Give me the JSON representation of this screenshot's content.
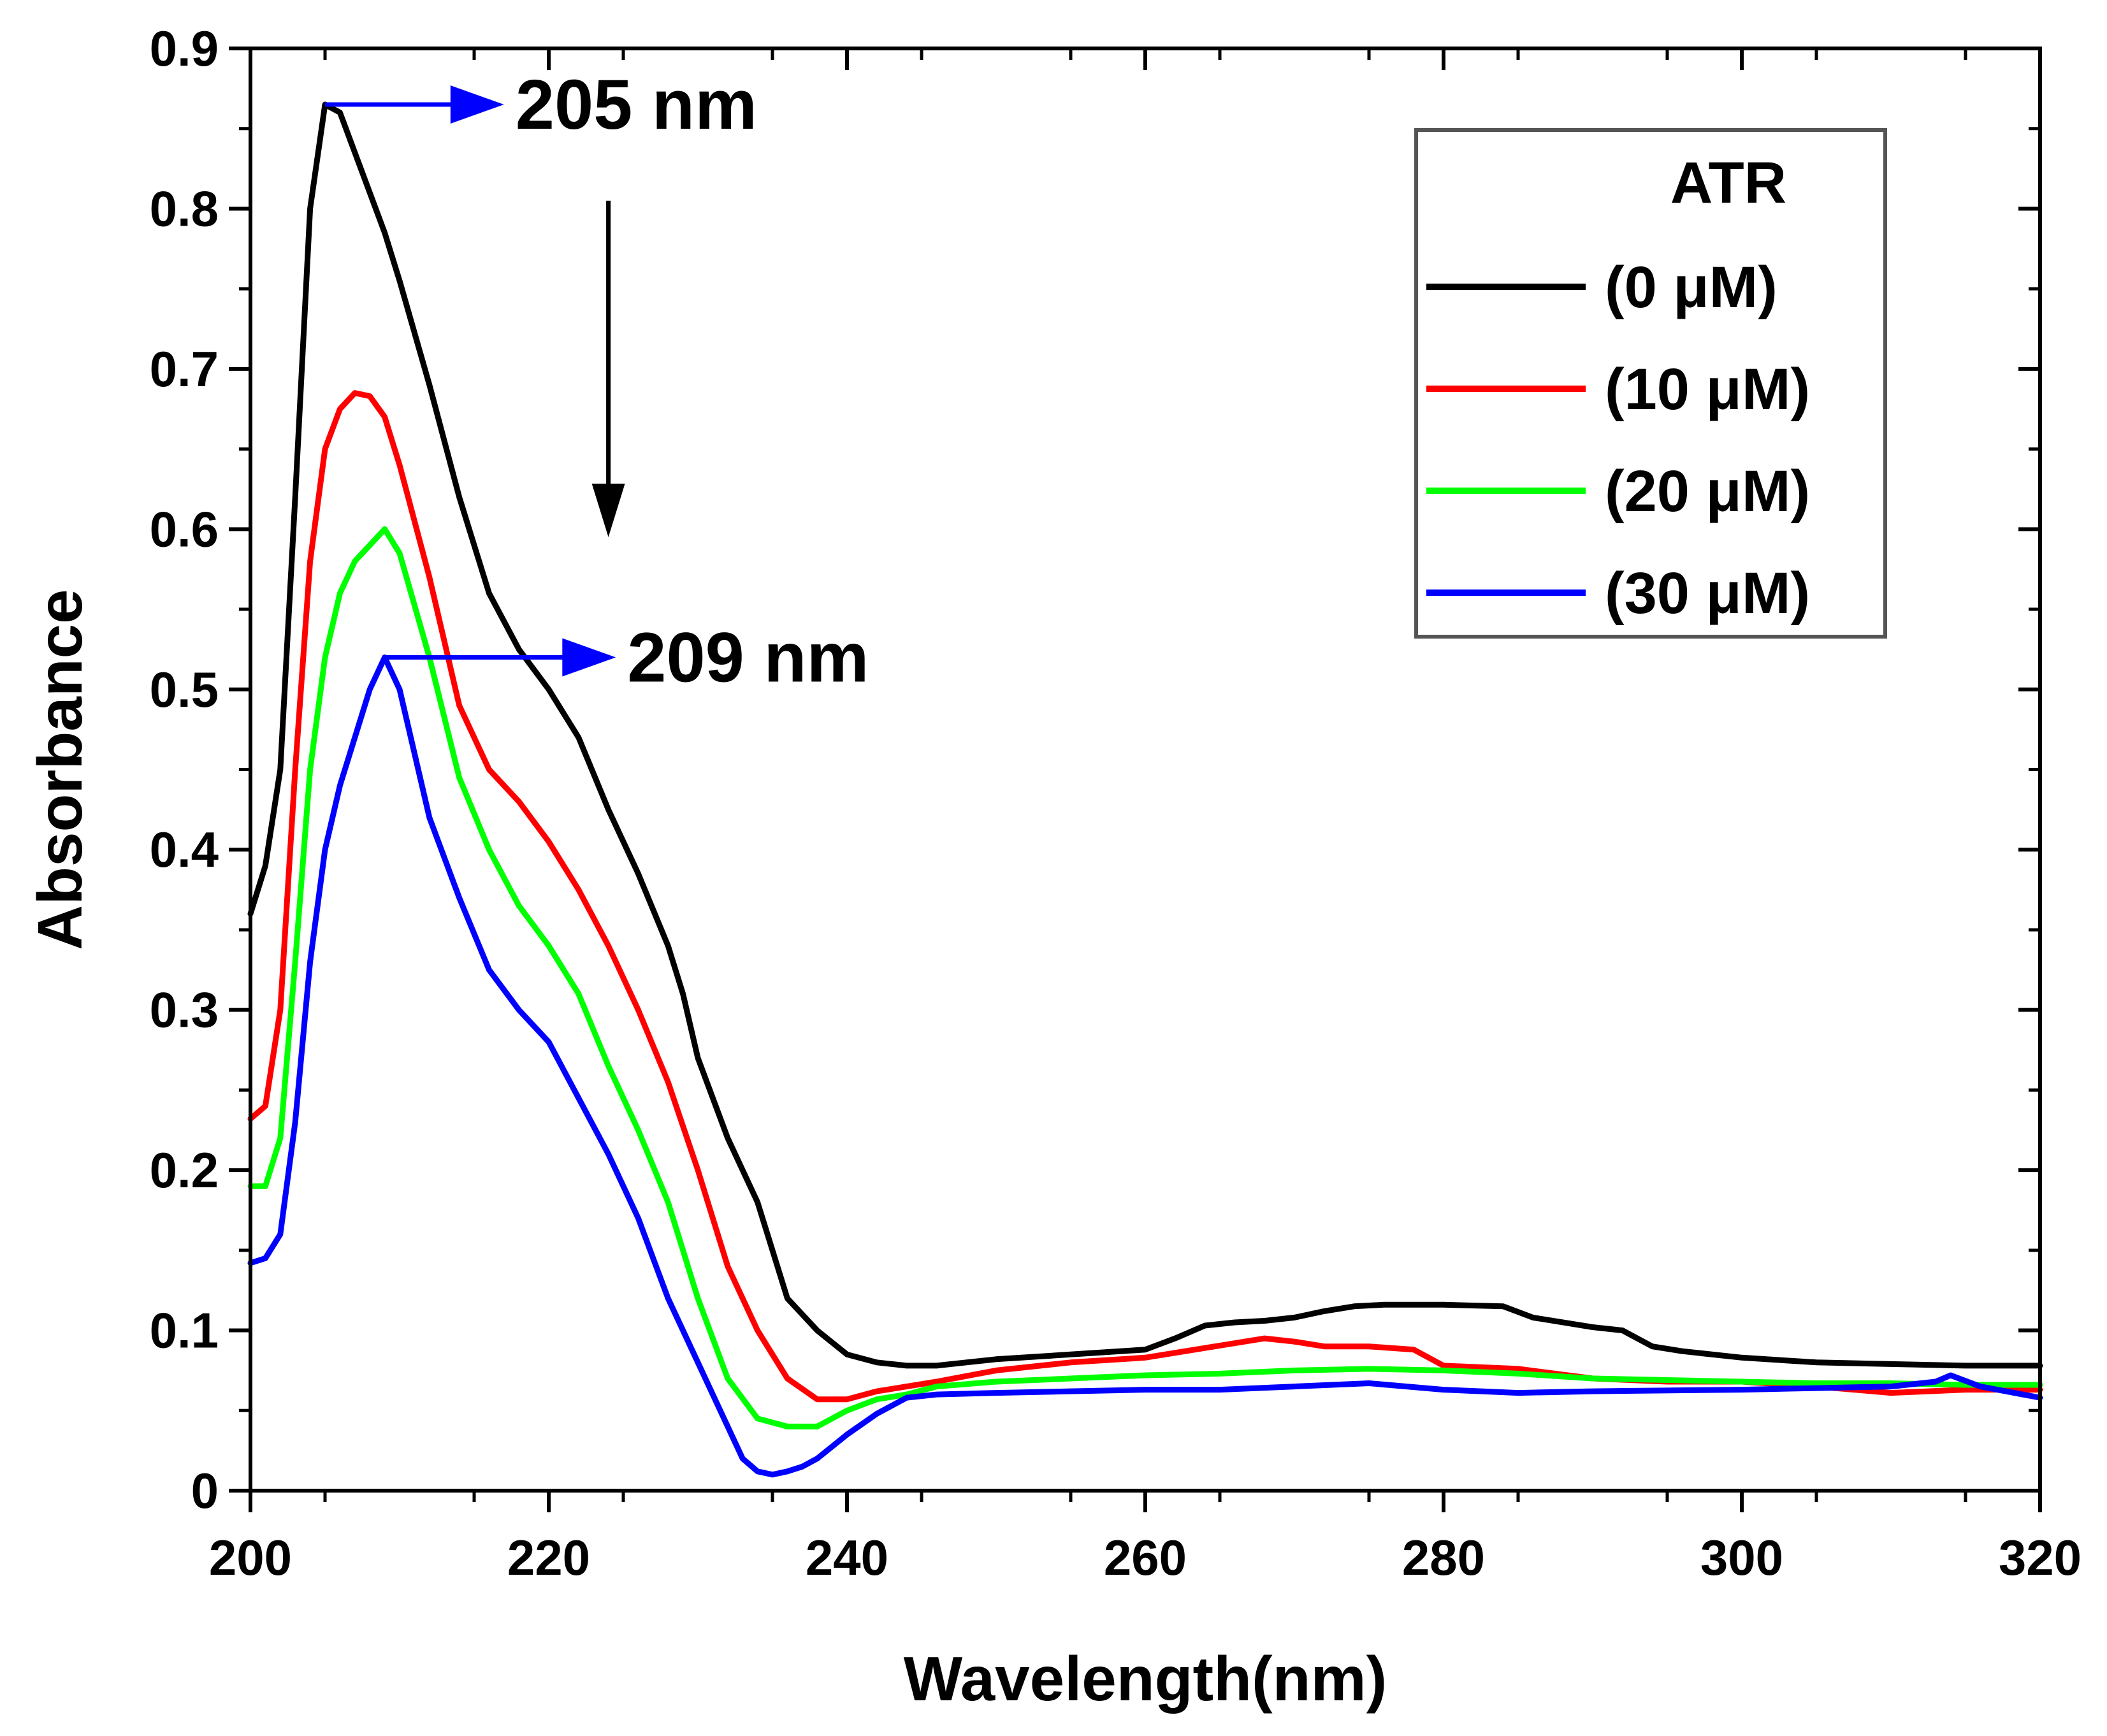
{
  "chart_data": {
    "type": "line",
    "title": "",
    "xlabel": "Wavelength(nm)",
    "ylabel": "Absorbance",
    "xlim": [
      200,
      320
    ],
    "ylim": [
      0,
      0.9
    ],
    "xticks": [
      200,
      220,
      240,
      260,
      280,
      300,
      320
    ],
    "yticks": [
      0,
      0.1,
      0.2,
      0.3,
      0.4,
      0.5,
      0.6,
      0.7,
      0.8,
      0.9
    ],
    "xtick_labels": [
      "200",
      "220",
      "240",
      "260",
      "280",
      "300",
      "320"
    ],
    "ytick_labels": [
      "0",
      "0.1",
      "0.2",
      "0.3",
      "0.4",
      "0.5",
      "0.6",
      "0.7",
      "0.8",
      "0.9"
    ],
    "grid": false,
    "legend": {
      "title": "ATR",
      "position": "top-right"
    },
    "series": [
      {
        "name": "(0 μM)",
        "color": "#000000",
        "x": [
          200,
          201,
          202,
          203,
          204,
          205,
          206,
          207,
          208,
          209,
          210,
          212,
          214,
          216,
          218,
          220,
          222,
          224,
          226,
          228,
          229,
          230,
          232,
          234,
          235,
          236,
          237,
          238,
          240,
          242,
          244,
          246,
          250,
          255,
          260,
          262,
          264,
          266,
          268,
          270,
          272,
          274,
          276,
          280,
          284,
          286,
          290,
          292,
          294,
          296,
          300,
          305,
          310,
          315,
          320
        ],
        "y": [
          0.36,
          0.39,
          0.45,
          0.62,
          0.8,
          0.865,
          0.86,
          0.835,
          0.81,
          0.785,
          0.755,
          0.69,
          0.62,
          0.56,
          0.525,
          0.5,
          0.47,
          0.425,
          0.385,
          0.34,
          0.31,
          0.27,
          0.22,
          0.18,
          0.15,
          0.12,
          0.11,
          0.1,
          0.085,
          0.08,
          0.078,
          0.078,
          0.082,
          0.085,
          0.088,
          0.095,
          0.103,
          0.105,
          0.106,
          0.108,
          0.112,
          0.115,
          0.116,
          0.116,
          0.115,
          0.108,
          0.102,
          0.1,
          0.09,
          0.087,
          0.083,
          0.08,
          0.079,
          0.078,
          0.078
        ]
      },
      {
        "name": "(10 μM)",
        "color": "#ff0000",
        "x": [
          200,
          201,
          202,
          203,
          204,
          205,
          206,
          207,
          208,
          209,
          210,
          212,
          214,
          216,
          218,
          220,
          222,
          224,
          226,
          228,
          230,
          232,
          234,
          236,
          238,
          240,
          242,
          244,
          246,
          250,
          255,
          260,
          264,
          268,
          270,
          272,
          275,
          278,
          280,
          285,
          290,
          295,
          300,
          305,
          310,
          315,
          320
        ],
        "y": [
          0.232,
          0.24,
          0.3,
          0.45,
          0.58,
          0.65,
          0.675,
          0.685,
          0.683,
          0.67,
          0.64,
          0.57,
          0.49,
          0.45,
          0.43,
          0.405,
          0.375,
          0.34,
          0.3,
          0.255,
          0.2,
          0.14,
          0.1,
          0.07,
          0.057,
          0.057,
          0.062,
          0.065,
          0.068,
          0.075,
          0.08,
          0.083,
          0.089,
          0.095,
          0.093,
          0.09,
          0.09,
          0.088,
          0.078,
          0.076,
          0.07,
          0.068,
          0.068,
          0.065,
          0.061,
          0.063,
          0.063
        ]
      },
      {
        "name": "(20 μM)",
        "color": "#00ff00",
        "x": [
          200,
          201,
          202,
          203,
          204,
          205,
          206,
          207,
          208,
          209,
          210,
          212,
          214,
          216,
          218,
          220,
          222,
          224,
          226,
          228,
          230,
          232,
          234,
          236,
          238,
          240,
          242,
          244,
          246,
          250,
          255,
          260,
          265,
          270,
          275,
          280,
          285,
          290,
          295,
          300,
          305,
          310,
          315,
          320
        ],
        "y": [
          0.19,
          0.19,
          0.22,
          0.33,
          0.45,
          0.52,
          0.56,
          0.58,
          0.59,
          0.6,
          0.585,
          0.52,
          0.445,
          0.4,
          0.365,
          0.34,
          0.31,
          0.265,
          0.225,
          0.18,
          0.12,
          0.07,
          0.045,
          0.04,
          0.04,
          0.05,
          0.057,
          0.06,
          0.065,
          0.068,
          0.07,
          0.072,
          0.073,
          0.075,
          0.076,
          0.075,
          0.073,
          0.07,
          0.069,
          0.068,
          0.067,
          0.067,
          0.066,
          0.066
        ]
      },
      {
        "name": "(30 μM)",
        "color": "#0000ff",
        "x": [
          200,
          201,
          202,
          203,
          204,
          205,
          206,
          207,
          208,
          209,
          210,
          212,
          214,
          216,
          218,
          220,
          222,
          224,
          226,
          228,
          230,
          231,
          232,
          233,
          234,
          235,
          236,
          237,
          238,
          240,
          242,
          244,
          246,
          250,
          255,
          260,
          265,
          270,
          275,
          280,
          285,
          290,
          300,
          305,
          310,
          313,
          314,
          316,
          320
        ],
        "y": [
          0.142,
          0.145,
          0.16,
          0.23,
          0.33,
          0.4,
          0.44,
          0.47,
          0.5,
          0.52,
          0.5,
          0.42,
          0.37,
          0.325,
          0.3,
          0.28,
          0.245,
          0.21,
          0.17,
          0.12,
          0.08,
          0.06,
          0.04,
          0.02,
          0.012,
          0.01,
          0.012,
          0.015,
          0.02,
          0.035,
          0.048,
          0.058,
          0.06,
          0.061,
          0.062,
          0.063,
          0.063,
          0.065,
          0.067,
          0.063,
          0.061,
          0.062,
          0.063,
          0.064,
          0.065,
          0.068,
          0.072,
          0.065,
          0.058
        ]
      }
    ],
    "annotations": [
      {
        "label": "205 nm",
        "x_from": 205,
        "x_to": 217,
        "y": 0.865,
        "color": "#0000ff"
      },
      {
        "label": "209 nm",
        "x_from": 209,
        "x_to": 224.5,
        "y": 0.52,
        "color": "#0000ff"
      }
    ],
    "trend_arrow": {
      "x": 224,
      "y_from": 0.805,
      "y_to": 0.595,
      "color": "#000000"
    }
  }
}
